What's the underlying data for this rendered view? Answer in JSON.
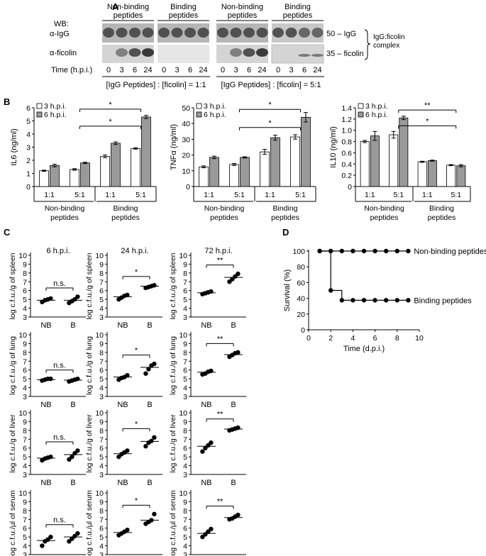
{
  "panelA": {
    "label": "A",
    "wb_label": "WB:",
    "groups": [
      "Non-binding peptides",
      "Binding peptides",
      "Non-binding peptides",
      "Binding peptides"
    ],
    "rows": [
      "α-IgG",
      "α-ficolin"
    ],
    "band_labels": [
      "50 – IgG",
      "35 – ficolin"
    ],
    "complex_label": "IgG:ficolin complex",
    "time_label": "Time (h.p.i.)",
    "times": [
      "0",
      "3",
      "6",
      "24"
    ],
    "ratio_labels": [
      "[IgG Peptides] : [ficolin] = 1:1",
      "[IgG Peptides] : [ficolin] = 5:1"
    ]
  },
  "panelB": {
    "label": "B",
    "group_labels": [
      "Non-binding peptides",
      "Binding peptides"
    ],
    "colors": {
      "h3": "#ffffff",
      "h6": "#9a9a9a"
    },
    "sig": [
      "*",
      "*",
      "*",
      "*",
      "**",
      "*"
    ]
  },
  "panelC": {
    "label": "C",
    "timepoints": [
      "6 h.p.i.",
      "24 h.p.i.",
      "72 h.p.i."
    ],
    "x_labels": [
      "NB",
      "B"
    ],
    "organs": [
      "log c.f.u./g of spleen",
      "log c.f.u./g of lung",
      "log c.f.u./g of liver",
      "log c.f.u./µl of serum"
    ],
    "sig": [
      [
        "n.s.",
        "*",
        "**"
      ],
      [
        "n.s.",
        "*",
        "**"
      ],
      [
        "n.s.",
        "*",
        "**"
      ],
      [
        "n.s.",
        "*",
        "**"
      ]
    ]
  },
  "panelD": {
    "label": "D"
  },
  "chart_data": [
    {
      "type": "bar",
      "id": "IL6",
      "ylabel": "IL6 (ng/ml)",
      "ylim": [
        0,
        6
      ],
      "yticks": [
        0,
        1,
        2,
        3,
        4,
        5,
        6
      ],
      "categories": [
        "1:1",
        "5:1",
        "1:1",
        "5:1"
      ],
      "legend": [
        "3 h.p.i.",
        "6 h.p.i."
      ],
      "series": [
        {
          "name": "3 h.p.i.",
          "values": [
            1.2,
            1.3,
            2.3,
            2.9
          ],
          "err": [
            0.05,
            0.06,
            0.1,
            0.05
          ]
        },
        {
          "name": "6 h.p.i.",
          "values": [
            1.6,
            1.8,
            3.3,
            5.3
          ],
          "err": [
            0.1,
            0.05,
            0.1,
            0.12
          ]
        }
      ]
    },
    {
      "type": "bar",
      "id": "TNF",
      "ylabel": "TNFα (ng/ml)",
      "ylim": [
        0,
        50
      ],
      "yticks": [
        0,
        10,
        20,
        30,
        40,
        50
      ],
      "categories": [
        "1:1",
        "5:1",
        "1:1",
        "5:1"
      ],
      "legend": [
        "3 h.p.i.",
        "6 h.p.i."
      ],
      "series": [
        {
          "name": "3 h.p.i.",
          "values": [
            12.5,
            14,
            22,
            31.5
          ],
          "err": [
            0.6,
            0.6,
            1.6,
            1.4
          ]
        },
        {
          "name": "6 h.p.i.",
          "values": [
            18.5,
            18.5,
            31,
            44
          ],
          "err": [
            0.8,
            0.4,
            1.6,
            3
          ]
        }
      ]
    },
    {
      "type": "bar",
      "id": "IL10",
      "ylabel": "IL10 (ng/ml)",
      "ylim": [
        0,
        1.4
      ],
      "yticks": [
        0,
        0.2,
        0.4,
        0.6,
        0.8,
        1.0,
        1.2,
        1.4
      ],
      "ytick_labels": [
        "0",
        "0.2",
        "0.4",
        "0.6",
        "0.8",
        "1.0",
        "1.2",
        "1.4"
      ],
      "categories": [
        "1:1",
        "5:1",
        "1:1",
        "5:1"
      ],
      "legend": [
        "3 h.p.i.",
        "6 h.p.i."
      ],
      "series": [
        {
          "name": "3 h.p.i.",
          "values": [
            0.8,
            0.92,
            0.44,
            0.38
          ],
          "err": [
            0.02,
            0.06,
            0.01,
            0.01
          ]
        },
        {
          "name": "6 h.p.i.",
          "values": [
            0.9,
            1.22,
            0.46,
            0.37
          ],
          "err": [
            0.08,
            0.03,
            0.01,
            0.02
          ]
        }
      ]
    },
    {
      "type": "scatter",
      "id": "C-grid",
      "ylim": [
        3,
        10
      ],
      "yticks": [
        3,
        4,
        5,
        6,
        7,
        8,
        9,
        10
      ],
      "grid": [
        [
          {
            "NB": [
              4.7,
              4.9,
              5.0,
              5.1
            ],
            "B": [
              4.6,
              4.8,
              5.0,
              5.3
            ],
            "nb_mean": 4.9,
            "b_mean": 4.9
          },
          {
            "NB": [
              5.0,
              5.2,
              5.4,
              5.5
            ],
            "B": [
              6.3,
              6.4,
              6.5,
              6.6
            ],
            "nb_mean": 5.3,
            "b_mean": 6.5
          },
          {
            "NB": [
              5.6,
              5.7,
              5.8,
              5.9
            ],
            "B": [
              7.0,
              7.3,
              7.6,
              7.9
            ],
            "nb_mean": 5.75,
            "b_mean": 7.5
          }
        ],
        [
          {
            "NB": [
              4.8,
              4.9,
              5.0,
              5.0
            ],
            "B": [
              4.7,
              4.8,
              4.9,
              5.0
            ],
            "nb_mean": 4.9,
            "b_mean": 4.85
          },
          {
            "NB": [
              4.9,
              5.1,
              5.2,
              5.4
            ],
            "B": [
              5.6,
              6.1,
              6.5,
              6.7
            ],
            "nb_mean": 5.2,
            "b_mean": 6.3
          },
          {
            "NB": [
              5.5,
              5.6,
              5.8,
              5.9
            ],
            "B": [
              7.5,
              7.7,
              7.9,
              8.0
            ],
            "nb_mean": 5.75,
            "b_mean": 7.75
          }
        ],
        [
          {
            "NB": [
              4.6,
              4.8,
              4.9,
              5.0
            ],
            "B": [
              4.7,
              5.0,
              5.4,
              5.7
            ],
            "nb_mean": 4.85,
            "b_mean": 5.25
          },
          {
            "NB": [
              5.0,
              5.3,
              5.5,
              5.7
            ],
            "B": [
              6.2,
              6.6,
              6.8,
              7.2
            ],
            "nb_mean": 5.35,
            "b_mean": 6.75
          },
          {
            "NB": [
              5.6,
              6.0,
              6.3,
              6.6
            ],
            "B": [
              8.0,
              8.1,
              8.2,
              8.3
            ],
            "nb_mean": 6.2,
            "b_mean": 8.15
          }
        ],
        [
          {
            "NB": [
              4.0,
              4.5,
              4.7,
              5.0
            ],
            "B": [
              4.5,
              4.8,
              5.1,
              5.4
            ],
            "nb_mean": 4.6,
            "b_mean": 5.0
          },
          {
            "NB": [
              5.2,
              5.4,
              5.6,
              5.8
            ],
            "B": [
              6.5,
              6.7,
              6.9,
              7.6
            ],
            "nb_mean": 5.5,
            "b_mean": 6.9
          },
          {
            "NB": [
              5.0,
              5.3,
              5.6,
              5.9
            ],
            "B": [
              7.0,
              7.1,
              7.3,
              7.5
            ],
            "nb_mean": 5.4,
            "b_mean": 7.2
          }
        ]
      ]
    },
    {
      "type": "line",
      "id": "survival",
      "xlabel": "Time (d.p.i.)",
      "ylabel": "Survival (%)",
      "xlim": [
        0,
        10
      ],
      "ylim": [
        0,
        100
      ],
      "xticks": [
        0,
        2,
        4,
        6,
        8,
        10
      ],
      "yticks": [
        0,
        20,
        40,
        60,
        80,
        100
      ],
      "series": [
        {
          "name": "Non-binding peptides",
          "x": [
            1,
            2,
            3,
            4,
            5,
            6,
            7,
            8,
            9
          ],
          "y": [
            100,
            100,
            100,
            100,
            100,
            100,
            100,
            100,
            100
          ]
        },
        {
          "name": "Binding peptides",
          "x": [
            1,
            2,
            3,
            4,
            5,
            6,
            7,
            8,
            9
          ],
          "y": [
            100,
            50,
            37.5,
            37.5,
            37.5,
            37.5,
            37.5,
            37.5,
            37.5
          ]
        }
      ]
    }
  ]
}
